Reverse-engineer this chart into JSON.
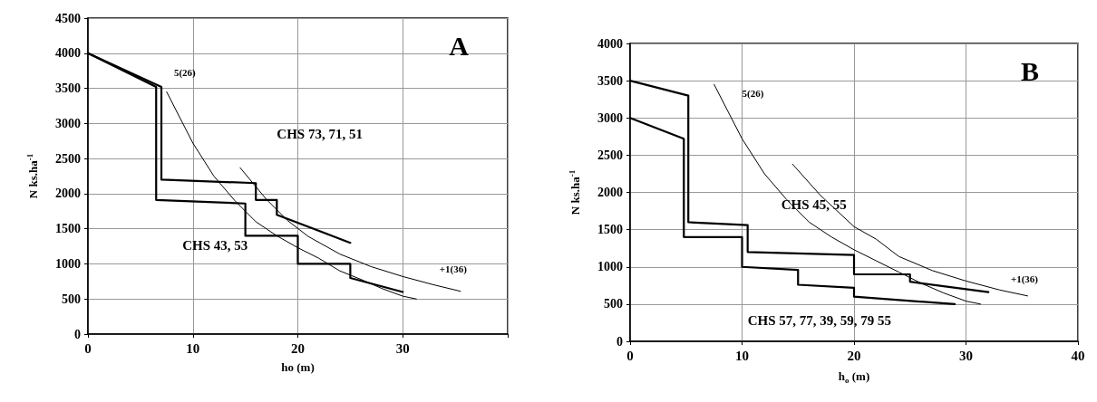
{
  "chart_data": [
    {
      "type": "line",
      "title": "A",
      "xlabel": "ho (m)",
      "ylabel": "N ks.ha$^{-1}$",
      "xlim": [
        0,
        40
      ],
      "xticks": [
        0,
        10,
        20,
        30,
        {
          "value": 40,
          "label": null
        }
      ],
      "ylim": [
        0,
        4500
      ],
      "yticks": [
        0,
        500,
        1000,
        1500,
        2000,
        2500,
        3000,
        3500,
        4000,
        4500
      ],
      "grid": true,
      "marker": "none",
      "line_style": "solid",
      "series": [
        {
          "color": "#000000",
          "x": [
            0,
            7,
            7,
            16,
            16,
            18,
            18,
            25
          ],
          "values": [
            4000,
            3520,
            2200,
            2150,
            1910,
            1910,
            1700,
            1300
          ]
        },
        {
          "color": "#000000",
          "x": [
            0,
            6.5,
            6.5,
            15,
            15,
            20,
            20,
            25,
            25,
            30
          ],
          "values": [
            4000,
            3520,
            1910,
            1860,
            1400,
            1400,
            1000,
            1000,
            800,
            600
          ]
        },
        {
          "color": "#000000",
          "x": [
            7.5,
            10,
            12,
            14,
            16,
            18,
            20,
            22,
            24,
            26,
            28,
            30,
            31.3
          ],
          "values": [
            3450,
            2720,
            2250,
            1900,
            1600,
            1400,
            1230,
            1080,
            900,
            780,
            650,
            540,
            500
          ]
        },
        {
          "color": "#000000",
          "x": [
            14.5,
            17,
            19,
            21,
            24,
            27,
            30,
            33,
            35.5
          ],
          "values": [
            2370,
            1920,
            1620,
            1390,
            1140,
            960,
            820,
            700,
            610
          ]
        }
      ],
      "annotations": [
        "5(26)",
        "CHS 73, 71, 51",
        "CHS 43, 53",
        "+1(36)"
      ]
    },
    {
      "type": "line",
      "title": "B",
      "xlabel": "h$_{o}$ (m)",
      "ylabel": "N ks.ha$^{-1}$",
      "xlim": [
        0,
        40
      ],
      "xticks": [
        0,
        10,
        20,
        30,
        40
      ],
      "ylim": [
        0,
        4000
      ],
      "yticks": [
        0,
        500,
        1000,
        1500,
        2000,
        2500,
        3000,
        3500,
        4000
      ],
      "grid": true,
      "marker": "none",
      "line_style": "solid",
      "series": [
        {
          "color": "#000000",
          "x": [
            0,
            5.2,
            5.2,
            10.5,
            10.5,
            20,
            20,
            25,
            25,
            32
          ],
          "values": [
            3500,
            3300,
            1600,
            1560,
            1200,
            1160,
            900,
            900,
            800,
            660
          ]
        },
        {
          "color": "#000000",
          "x": [
            0,
            4.8,
            4.8,
            10,
            10,
            15,
            15,
            20,
            20,
            29
          ],
          "values": [
            3000,
            2720,
            1400,
            1400,
            1000,
            960,
            760,
            720,
            600,
            500
          ]
        },
        {
          "color": "#000000",
          "x": [
            7.5,
            10,
            12,
            14,
            16,
            18,
            20,
            22,
            24,
            26,
            28,
            30,
            31.3
          ],
          "values": [
            3450,
            2720,
            2250,
            1900,
            1600,
            1400,
            1230,
            1080,
            930,
            780,
            650,
            540,
            500
          ]
        },
        {
          "color": "#000000",
          "x": [
            14.5,
            17,
            20,
            22,
            24,
            27,
            30,
            33,
            35.5
          ],
          "values": [
            2380,
            1960,
            1540,
            1370,
            1140,
            950,
            810,
            690,
            610
          ]
        }
      ],
      "annotations": [
        "5(26)",
        "CHS 45, 55",
        "CHS 57, 77, 39, 59, 79 55",
        "+1(36)"
      ]
    }
  ]
}
